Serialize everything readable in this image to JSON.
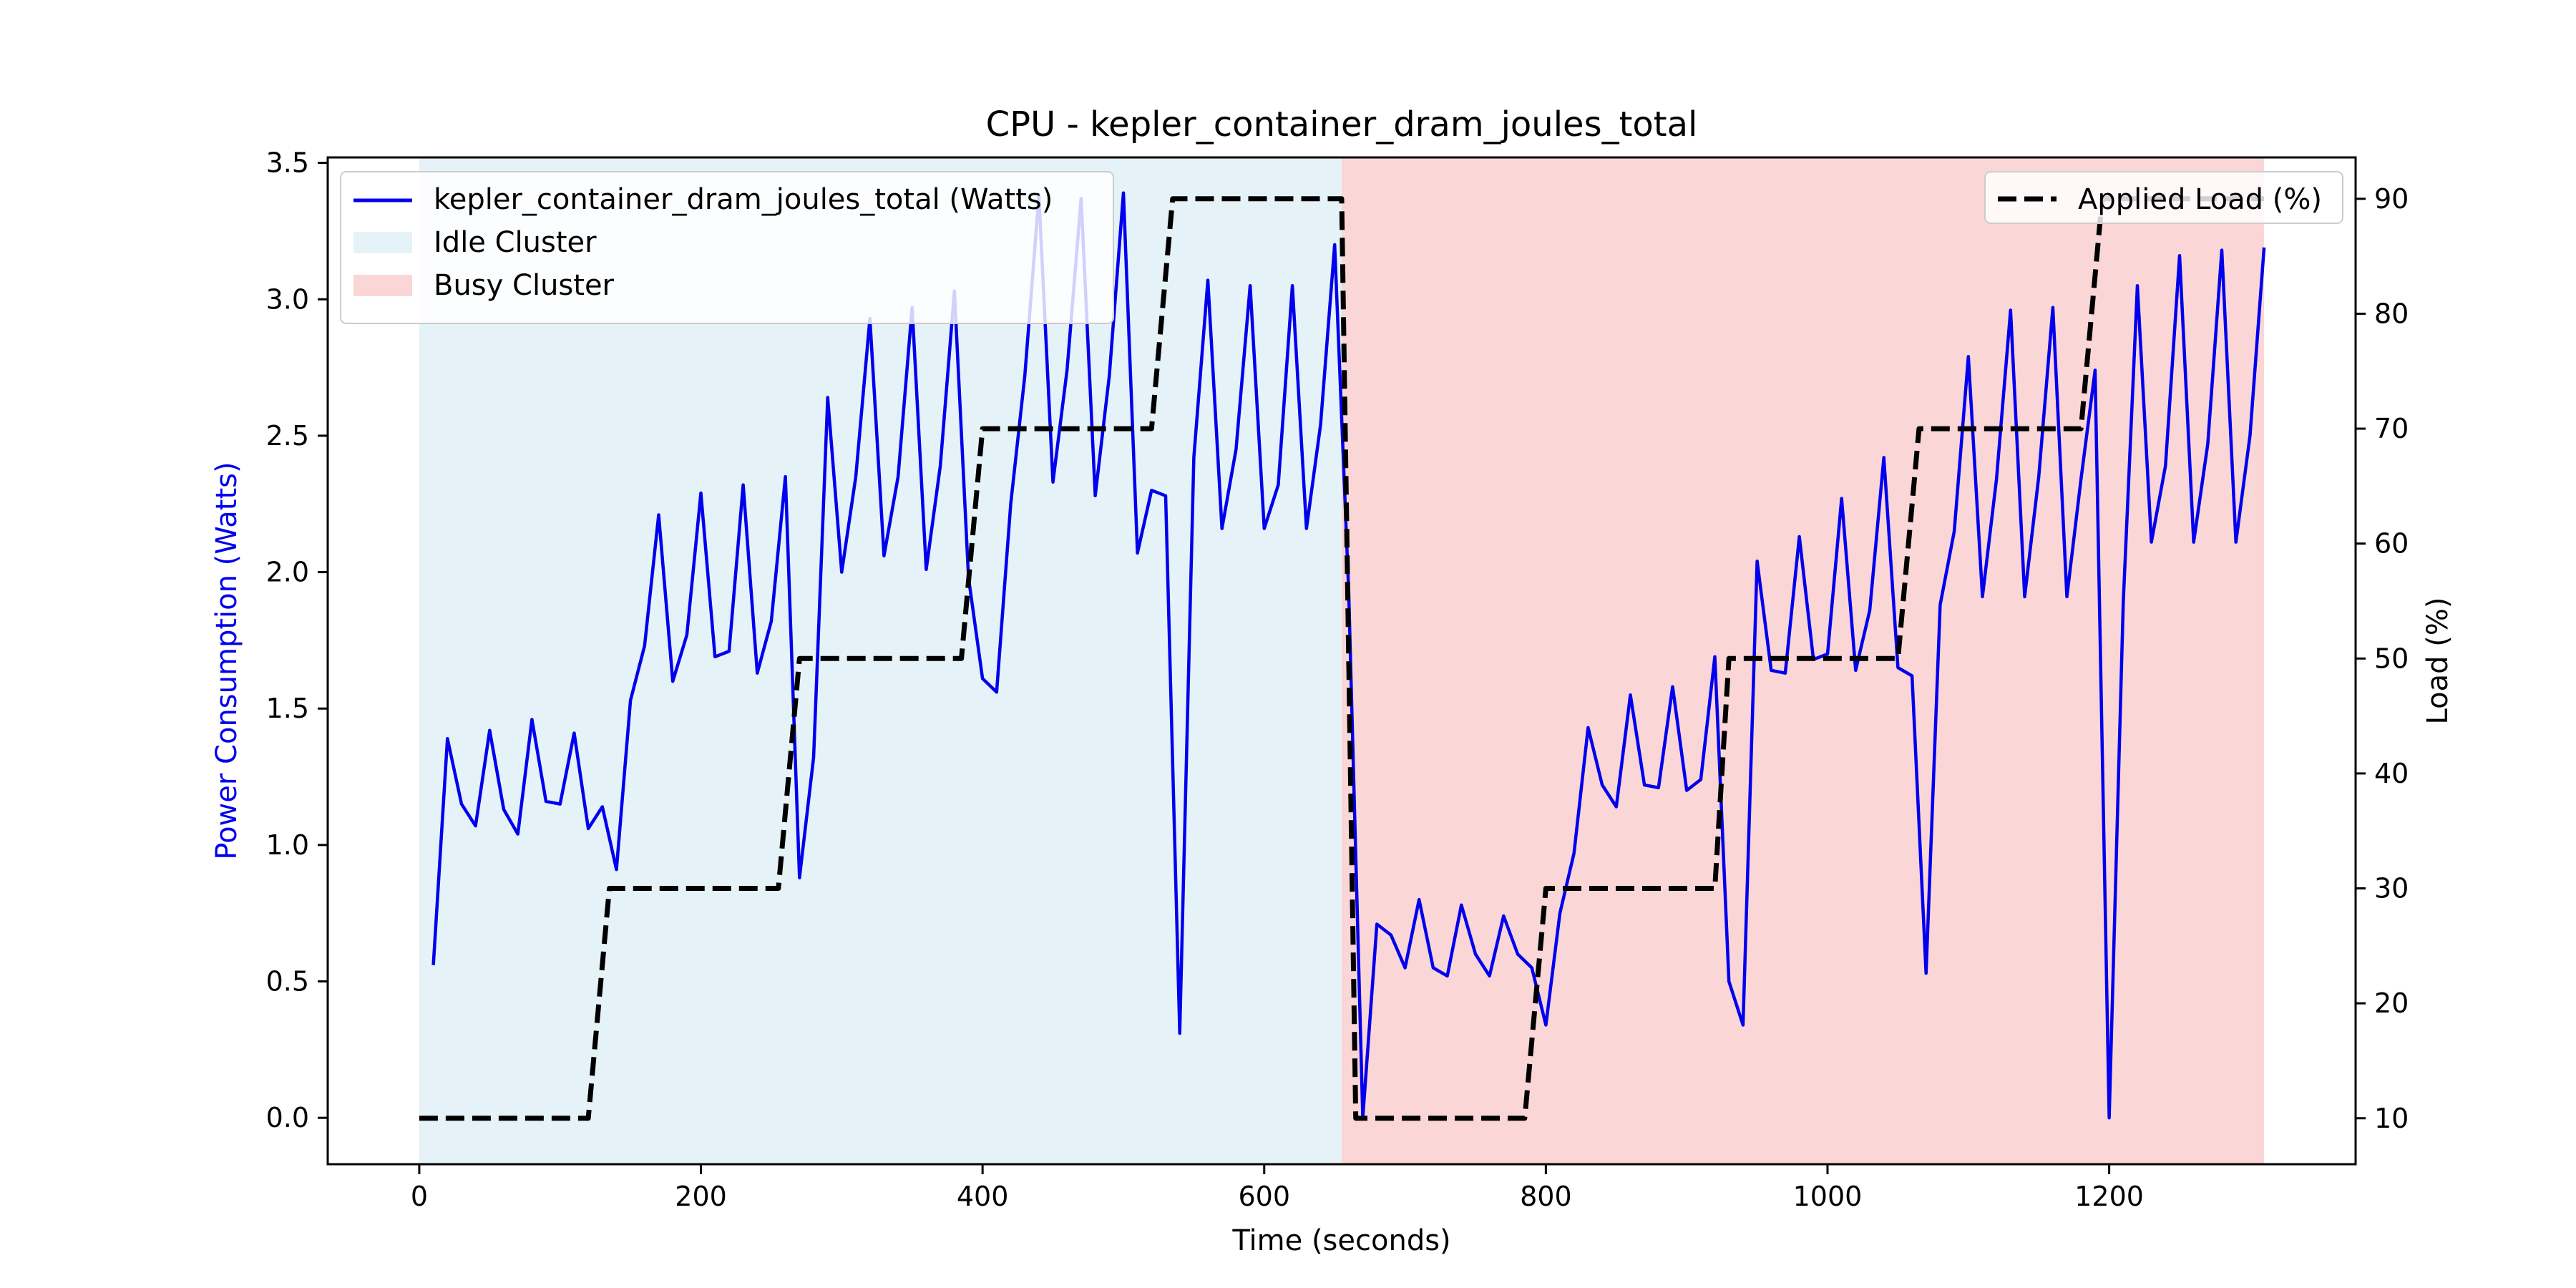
{
  "chart_data": {
    "type": "line",
    "title": "CPU - kepler_container_dram_joules_total",
    "xlabel": "Time (seconds)",
    "ylabel_left": "Power Consumption (Watts)",
    "ylabel_right": "Load (%)",
    "xlim": [
      -65,
      1375
    ],
    "ylim_left": [
      -0.17,
      3.52
    ],
    "ylim_right": [
      6,
      93.6
    ],
    "xticks": [
      0,
      200,
      400,
      600,
      800,
      1000,
      1200
    ],
    "yticks_left": [
      0.0,
      0.5,
      1.0,
      1.5,
      2.0,
      2.5,
      3.0,
      3.5
    ],
    "yticks_right": [
      10,
      20,
      30,
      40,
      50,
      60,
      70,
      80,
      90
    ],
    "grid": false,
    "regions": [
      {
        "name": "Idle Cluster",
        "x_start": 0,
        "x_end": 655,
        "color": "#add8e6"
      },
      {
        "name": "Busy Cluster",
        "x_start": 655,
        "x_end": 1310,
        "color": "#f08080"
      }
    ],
    "series": [
      {
        "name": "kepler_container_dram_joules_total (Watts)",
        "axis": "left",
        "color": "#0000ee",
        "style": "solid",
        "x": [
          10,
          20,
          30,
          40,
          50,
          60,
          70,
          80,
          90,
          100,
          110,
          120,
          130,
          140,
          150,
          160,
          170,
          180,
          190,
          200,
          210,
          220,
          230,
          240,
          250,
          260,
          270,
          280,
          290,
          300,
          310,
          320,
          330,
          340,
          350,
          360,
          370,
          380,
          390,
          400,
          410,
          420,
          430,
          440,
          450,
          460,
          470,
          480,
          490,
          500,
          510,
          520,
          530,
          540,
          550,
          560,
          570,
          580,
          590,
          600,
          610,
          620,
          630,
          640,
          650,
          660,
          670,
          680,
          690,
          700,
          710,
          720,
          730,
          740,
          750,
          760,
          770,
          780,
          790,
          800,
          810,
          820,
          830,
          840,
          850,
          860,
          870,
          880,
          890,
          900,
          910,
          920,
          930,
          940,
          950,
          960,
          970,
          980,
          990,
          1000,
          1010,
          1020,
          1030,
          1040,
          1050,
          1060,
          1070,
          1080,
          1090,
          1100,
          1110,
          1120,
          1130,
          1140,
          1150,
          1160,
          1170,
          1180,
          1190,
          1200,
          1210,
          1220,
          1230,
          1240,
          1250,
          1260,
          1270,
          1280,
          1290,
          1300,
          1310
        ],
        "y": [
          0.56,
          1.39,
          1.15,
          1.07,
          1.42,
          1.13,
          1.04,
          1.46,
          1.16,
          1.15,
          1.41,
          1.06,
          1.14,
          0.91,
          1.53,
          1.73,
          2.21,
          1.6,
          1.77,
          2.29,
          1.69,
          1.71,
          2.32,
          1.63,
          1.82,
          2.35,
          0.88,
          1.32,
          2.64,
          2.0,
          2.35,
          2.93,
          2.06,
          2.35,
          2.97,
          2.01,
          2.39,
          3.03,
          1.98,
          1.61,
          1.56,
          2.25,
          2.72,
          3.38,
          2.33,
          2.74,
          3.37,
          2.28,
          2.72,
          3.39,
          2.07,
          2.3,
          2.28,
          0.31,
          2.42,
          3.07,
          2.16,
          2.45,
          3.05,
          2.16,
          2.32,
          3.05,
          2.16,
          2.54,
          3.2,
          1.93,
          0.0,
          0.71,
          0.67,
          0.55,
          0.8,
          0.55,
          0.52,
          0.78,
          0.6,
          0.52,
          0.74,
          0.6,
          0.55,
          0.34,
          0.75,
          0.97,
          1.43,
          1.22,
          1.14,
          1.55,
          1.22,
          1.21,
          1.58,
          1.2,
          1.24,
          1.69,
          0.5,
          0.34,
          2.04,
          1.64,
          1.63,
          2.13,
          1.68,
          1.7,
          2.27,
          1.64,
          1.86,
          2.42,
          1.65,
          1.62,
          0.53,
          1.88,
          2.15,
          2.79,
          1.91,
          2.34,
          2.96,
          1.91,
          2.35,
          2.97,
          1.91,
          2.34,
          2.74,
          0.0,
          1.89,
          3.05,
          2.11,
          2.39,
          3.16,
          2.11,
          2.47,
          3.18,
          2.11,
          2.5,
          3.19
        ]
      },
      {
        "name": "Applied Load (%)",
        "axis": "right",
        "color": "#000000",
        "style": "dashed",
        "x": [
          0,
          120,
          135,
          255,
          270,
          385,
          400,
          520,
          535,
          655,
          665,
          785,
          800,
          920,
          930,
          1050,
          1065,
          1180,
          1195,
          1310
        ],
        "y": [
          10,
          10,
          30,
          30,
          50,
          50,
          70,
          70,
          90,
          90,
          10,
          10,
          30,
          30,
          50,
          50,
          70,
          70,
          90,
          90
        ]
      }
    ],
    "legend_left": {
      "placement": "upper left",
      "entries": [
        "kepler_container_dram_joules_total (Watts)",
        "Idle Cluster",
        "Busy Cluster"
      ]
    },
    "legend_right": {
      "placement": "upper right",
      "entries": [
        "Applied Load (%)"
      ]
    }
  }
}
